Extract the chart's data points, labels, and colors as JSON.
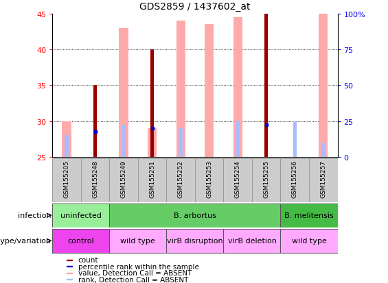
{
  "title": "GDS2859 / 1437602_at",
  "samples": [
    "GSM155205",
    "GSM155248",
    "GSM155249",
    "GSM155251",
    "GSM155252",
    "GSM155253",
    "GSM155254",
    "GSM155255",
    "GSM155256",
    "GSM155257"
  ],
  "ylim": [
    25,
    45
  ],
  "yticks": [
    25,
    30,
    35,
    40,
    45
  ],
  "right_yticks": [
    0,
    25,
    50,
    75,
    100
  ],
  "count_values": [
    null,
    35,
    null,
    40,
    null,
    null,
    null,
    45,
    null,
    null
  ],
  "percentile_rank_values": [
    null,
    28.5,
    null,
    29,
    null,
    null,
    null,
    29.5,
    null,
    null
  ],
  "absent_value_values": [
    30,
    null,
    43,
    29,
    44,
    43.5,
    44.5,
    null,
    null,
    45
  ],
  "absent_rank_values": [
    28,
    null,
    29.5,
    null,
    29,
    null,
    30,
    null,
    30,
    27
  ],
  "infection_groups": [
    {
      "label": "uninfected",
      "start": 0,
      "end": 2,
      "color": "#99ee99"
    },
    {
      "label": "B. arbortus",
      "start": 2,
      "end": 8,
      "color": "#66cc66"
    },
    {
      "label": "B. melitensis",
      "start": 8,
      "end": 10,
      "color": "#44bb44"
    }
  ],
  "genotype_groups": [
    {
      "label": "control",
      "start": 0,
      "end": 2,
      "color": "#ee44ee"
    },
    {
      "label": "wild type",
      "start": 2,
      "end": 4,
      "color": "#ffaaff"
    },
    {
      "label": "virB disruption",
      "start": 4,
      "end": 6,
      "color": "#ffaaff"
    },
    {
      "label": "virB deletion",
      "start": 6,
      "end": 8,
      "color": "#ffaaff"
    },
    {
      "label": "wild type",
      "start": 8,
      "end": 10,
      "color": "#ffaaff"
    }
  ],
  "color_count": "#990000",
  "color_percentile": "#0000cc",
  "color_absent_value": "#ffaaaa",
  "color_absent_rank": "#aabbff",
  "legend_items": [
    {
      "label": "count",
      "color": "#990000"
    },
    {
      "label": "percentile rank within the sample",
      "color": "#0000cc"
    },
    {
      "label": "value, Detection Call = ABSENT",
      "color": "#ffaaaa"
    },
    {
      "label": "rank, Detection Call = ABSENT",
      "color": "#aabbff"
    }
  ],
  "sample_bg": "#cccccc",
  "grid_lines": [
    30,
    35,
    40
  ]
}
